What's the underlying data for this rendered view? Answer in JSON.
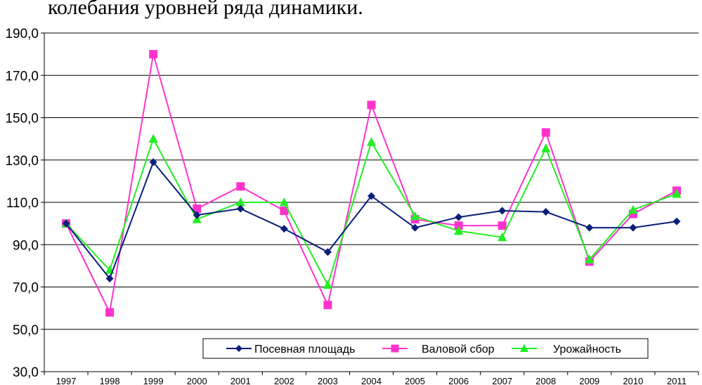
{
  "caption": "колебания уровней ряда динамики.",
  "chart_data": {
    "type": "line",
    "categories": [
      "1997",
      "1998",
      "1999",
      "2000",
      "2001",
      "2002",
      "2003",
      "2004",
      "2005",
      "2006",
      "2007",
      "2008",
      "2009",
      "2010",
      "2011"
    ],
    "ylim": [
      30,
      190
    ],
    "yticks": [
      "30,0",
      "50,0",
      "70,0",
      "90,0",
      "110,0",
      "130,0",
      "150,0",
      "170,0",
      "190,0"
    ],
    "grid": "horizontal",
    "legend_position": "bottom-right",
    "series": [
      {
        "name": "Посевная площадь",
        "color": "#0a1f7a",
        "marker": "diamond",
        "values": [
          100,
          74,
          129,
          104,
          107,
          97.5,
          86.5,
          113,
          98,
          103,
          106,
          105.5,
          98,
          98,
          101
        ]
      },
      {
        "name": "Валовой сбор",
        "color": "#ff33cc",
        "marker": "square",
        "values": [
          100,
          58,
          180,
          107,
          117.5,
          106,
          61.5,
          156,
          102,
          99,
          99,
          143,
          82,
          104.5,
          115.5
        ]
      },
      {
        "name": "Урожайность",
        "color": "#22ee22",
        "marker": "triangle",
        "values": [
          100,
          78,
          140,
          102,
          110,
          110,
          71,
          138.5,
          103.5,
          96.5,
          93.5,
          135.5,
          83,
          106.5,
          114
        ]
      }
    ]
  }
}
